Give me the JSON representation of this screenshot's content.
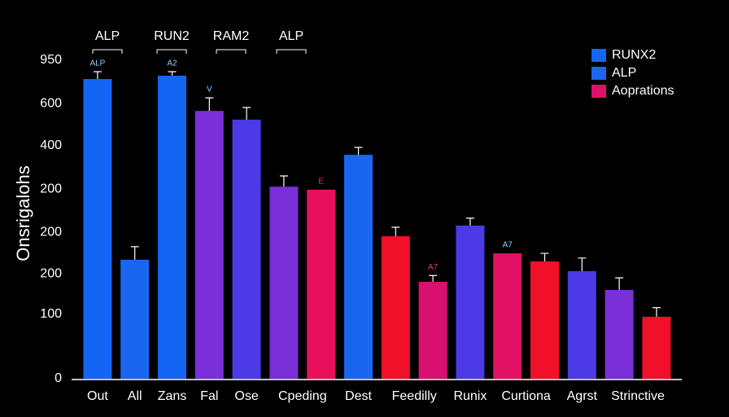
{
  "chart_data": {
    "type": "bar",
    "y_label": "Onsrigalohs",
    "categories": [
      "Out",
      "All",
      "Zans",
      "Fal",
      "Ose",
      "Cpeding",
      null,
      "Dest",
      "Feedilly",
      null,
      "Runix",
      "Curtiona",
      null,
      "Agrst",
      "Strinctive",
      null
    ],
    "values": [
      894,
      355,
      904,
      799,
      773,
      573,
      564,
      668,
      425,
      289,
      457,
      374,
      350,
      321,
      265,
      185
    ],
    "errors": [
      22,
      39,
      12,
      39,
      36,
      32,
      null,
      22,
      27,
      19,
      22,
      null,
      24,
      39,
      36,
      27
    ],
    "colors": [
      "#1565f5",
      "#1a66f0",
      "#1565f5",
      "#7a2fd8",
      "#4b3ae6",
      "#7a2fd8",
      "#e8105a",
      "#1a66f0",
      "#f0102a",
      "#d81070",
      "#4b3ae6",
      "#e01065",
      "#f0102a",
      "#4b3ae6",
      "#7a2fd8",
      "#f0102a"
    ],
    "bar_labels": [
      "ALP",
      null,
      "A2",
      "V",
      null,
      null,
      "E",
      null,
      null,
      "A7",
      null,
      "A7",
      null,
      null,
      null,
      null
    ],
    "group_labels": [
      "ALP",
      "RUN2",
      "RAM2",
      "ALP"
    ],
    "ylim": [
      0,
      950
    ],
    "yticks": [
      0,
      {
        "value": 192,
        "label": "100"
      },
      {
        "value": 313,
        "label": "200"
      },
      {
        "value": 437,
        "label": "200"
      },
      {
        "value": 566,
        "label": "200"
      },
      {
        "value": 695,
        "label": "400"
      },
      {
        "value": 821,
        "label": "600"
      },
      950
    ],
    "grid": false,
    "legend_position": "upper right",
    "legend": [
      {
        "name": "RUNX2",
        "color": "#1565f5"
      },
      {
        "name": "ALP",
        "color": "#1a66f0"
      },
      {
        "name": "Aoprations",
        "color": "#e0106a"
      }
    ]
  }
}
